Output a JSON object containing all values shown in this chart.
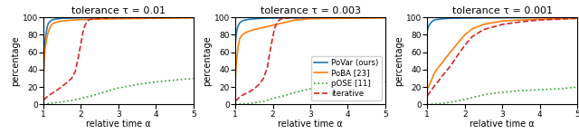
{
  "titles": [
    "tolerance τ = 0.01",
    "tolerance τ = 0.003",
    "tolerance τ = 0.001"
  ],
  "xlabel": "relative time α",
  "ylabel": "percentage",
  "xlim": [
    1,
    5
  ],
  "ylim": [
    0,
    100
  ],
  "xticks": [
    1,
    2,
    3,
    4,
    5
  ],
  "yticks": [
    0,
    20,
    40,
    60,
    80,
    100
  ],
  "legend_labels": [
    "PoVar (ours)",
    "PoBA [23]",
    "pOSE [11]",
    "iterative"
  ],
  "colors": [
    "#1f77b4",
    "#ff7f0e",
    "#2ca02c",
    "#d62728"
  ],
  "linestyles": [
    "-",
    "-",
    ":",
    "--"
  ],
  "curves": {
    "tau_0.01": {
      "PoVar": {
        "x": [
          1.0,
          1.02,
          1.04,
          1.06,
          1.08,
          1.1,
          1.13,
          1.17,
          1.22,
          1.3,
          1.5,
          2.0,
          3.0,
          5.0
        ],
        "y": [
          30,
          55,
          70,
          78,
          84,
          89,
          93,
          95,
          97,
          98,
          99,
          99.5,
          99.8,
          100
        ]
      },
      "PoBA": {
        "x": [
          1.0,
          1.02,
          1.05,
          1.08,
          1.12,
          1.17,
          1.22,
          1.3,
          1.5,
          2.0,
          3.0,
          5.0
        ],
        "y": [
          30,
          52,
          65,
          74,
          82,
          88,
          92,
          94,
          96,
          97.5,
          98.5,
          99.5
        ]
      },
      "pOSE": {
        "x": [
          1.0,
          1.1,
          1.3,
          1.5,
          1.8,
          2.0,
          2.3,
          2.6,
          3.0,
          3.5,
          4.0,
          4.5,
          5.0
        ],
        "y": [
          0,
          1,
          2,
          3,
          5,
          7,
          10,
          14,
          19,
          23,
          26,
          28,
          30
        ]
      },
      "iterative": {
        "x": [
          1.0,
          1.05,
          1.1,
          1.2,
          1.35,
          1.5,
          1.65,
          1.75,
          1.85,
          1.92,
          2.0,
          2.05,
          2.1,
          2.15,
          2.2,
          2.3,
          2.5,
          3.0,
          5.0
        ],
        "y": [
          5,
          7,
          9,
          12,
          16,
          21,
          26,
          30,
          38,
          52,
          70,
          82,
          90,
          94,
          97,
          98.5,
          99,
          99.5,
          100
        ]
      }
    },
    "tau_0.003": {
      "PoVar": {
        "x": [
          1.0,
          1.02,
          1.05,
          1.08,
          1.12,
          1.18,
          1.25,
          1.4,
          1.7,
          2.5,
          5.0
        ],
        "y": [
          70,
          80,
          87,
          91,
          94,
          96,
          97,
          98,
          99,
          99.5,
          100
        ]
      },
      "PoBA": {
        "x": [
          1.0,
          1.02,
          1.05,
          1.08,
          1.12,
          1.18,
          1.25,
          1.35,
          1.5,
          1.7,
          2.0,
          2.3,
          2.6,
          3.0,
          4.0,
          5.0
        ],
        "y": [
          28,
          45,
          58,
          68,
          76,
          80,
          82,
          84,
          86,
          88,
          91,
          94,
          97,
          98.5,
          99,
          99.5
        ]
      },
      "pOSE": {
        "x": [
          1.0,
          1.1,
          1.3,
          1.5,
          1.8,
          2.0,
          2.3,
          2.6,
          3.0,
          3.5,
          4.0,
          4.5,
          5.0
        ],
        "y": [
          0,
          0.5,
          1,
          2,
          4,
          7,
          10,
          14,
          18,
          21,
          23,
          25,
          26
        ]
      },
      "iterative": {
        "x": [
          1.0,
          1.05,
          1.1,
          1.2,
          1.35,
          1.5,
          1.65,
          1.75,
          1.85,
          1.92,
          2.0,
          2.05,
          2.1,
          2.15,
          2.2,
          2.3,
          2.5,
          3.0,
          5.0
        ],
        "y": [
          4,
          6,
          8,
          11,
          14,
          18,
          24,
          30,
          42,
          60,
          78,
          88,
          93,
          96,
          98,
          99,
          99.5,
          100,
          100
        ]
      }
    },
    "tau_0.001": {
      "PoVar": {
        "x": [
          1.0,
          1.02,
          1.05,
          1.08,
          1.12,
          1.18,
          1.3,
          1.6,
          2.5,
          5.0
        ],
        "y": [
          85,
          88,
          91,
          93,
          95,
          97,
          98,
          99,
          99.5,
          100
        ]
      },
      "PoBA": {
        "x": [
          1.0,
          1.05,
          1.1,
          1.15,
          1.2,
          1.3,
          1.4,
          1.5,
          1.65,
          1.8,
          2.0,
          2.2,
          2.5,
          3.0,
          4.0,
          5.0
        ],
        "y": [
          18,
          22,
          27,
          32,
          37,
          43,
          48,
          54,
          62,
          70,
          80,
          87,
          92,
          96,
          98,
          99
        ]
      },
      "pOSE": {
        "x": [
          1.0,
          1.1,
          1.3,
          1.5,
          1.8,
          2.0,
          2.3,
          2.6,
          3.0,
          3.5,
          4.0,
          4.5,
          5.0
        ],
        "y": [
          0,
          0.5,
          1,
          2,
          4,
          6,
          9,
          12,
          14,
          16,
          17,
          18,
          20
        ]
      },
      "iterative": {
        "x": [
          1.0,
          1.05,
          1.1,
          1.15,
          1.2,
          1.3,
          1.4,
          1.5,
          1.65,
          1.8,
          2.0,
          2.2,
          2.5,
          3.0,
          3.5,
          4.0,
          5.0
        ],
        "y": [
          10,
          13,
          16,
          19,
          22,
          27,
          33,
          38,
          46,
          56,
          68,
          78,
          86,
          92,
          95,
          97,
          99
        ]
      }
    }
  }
}
